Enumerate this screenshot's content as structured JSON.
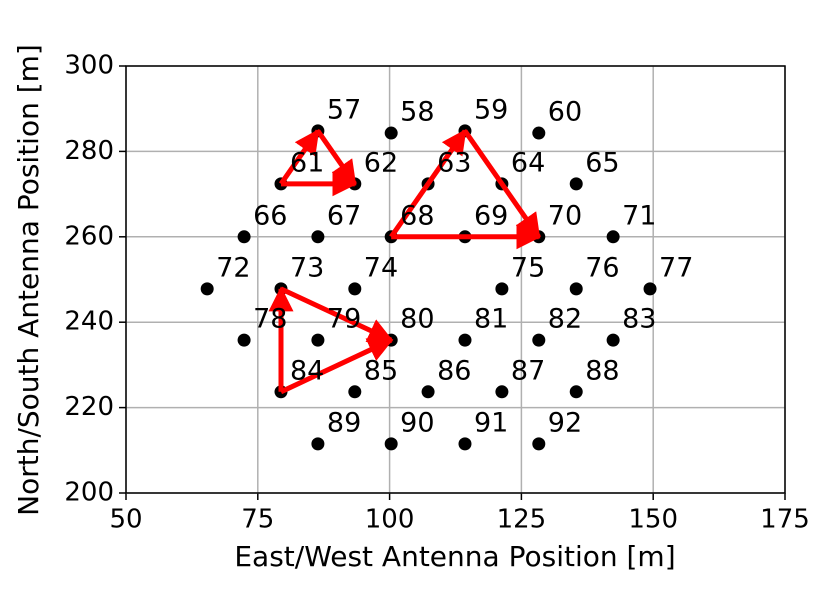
{
  "chart_data": {
    "type": "scatter",
    "xlabel": "East/West Antenna Position [m]",
    "ylabel": "North/South Antenna Position [m]",
    "xlim": [
      50,
      175
    ],
    "xticks": [
      50,
      75,
      100,
      125,
      150,
      175
    ],
    "ylim": [
      200,
      300
    ],
    "yticks": [
      200,
      220,
      240,
      260,
      280,
      300
    ],
    "grid": true,
    "color": "#000000",
    "point_labels": [
      "57",
      "58",
      "59",
      "60",
      "61",
      "62",
      "63",
      "64",
      "65",
      "66",
      "67",
      "68",
      "69",
      "70",
      "71",
      "72",
      "73",
      "74",
      "75",
      "76",
      "77",
      "78",
      "79",
      "80",
      "81",
      "82",
      "83",
      "84",
      "85",
      "86",
      "87",
      "88",
      "89",
      "90",
      "91",
      "92"
    ],
    "x": [
      86.4,
      100.3,
      114.3,
      128.3,
      79.4,
      93.4,
      107.3,
      121.3,
      135.4,
      72.4,
      86.4,
      100.3,
      114.3,
      128.3,
      142.4,
      65.4,
      79.4,
      93.4,
      121.3,
      135.4,
      149.4,
      72.4,
      86.4,
      100.3,
      114.3,
      128.3,
      142.4,
      79.4,
      93.4,
      107.3,
      121.3,
      135.4,
      86.4,
      100.3,
      114.3,
      128.3
    ],
    "values": [
      284.8,
      284.3,
      284.8,
      284.3,
      272.4,
      272.4,
      272.4,
      272.4,
      272.4,
      260,
      260,
      260,
      260,
      260,
      260,
      247.8,
      247.8,
      247.8,
      247.8,
      247.8,
      247.8,
      235.8,
      235.8,
      235.8,
      235.8,
      235.8,
      235.8,
      223.7,
      223.7,
      223.7,
      223.7,
      223.7,
      211.5,
      211.5,
      211.5,
      211.5
    ],
    "arrow_color": "#ff0000",
    "arrows": [
      {
        "x": [
          79.4,
          86.4
        ],
        "y": [
          272.4,
          284.8
        ]
      },
      {
        "x": [
          86.4,
          93.4
        ],
        "y": [
          284.8,
          272.4
        ]
      },
      {
        "x": [
          79.4,
          93.4
        ],
        "y": [
          272.4,
          272.4
        ]
      },
      {
        "x": [
          100.3,
          114.3
        ],
        "y": [
          260,
          284.8
        ]
      },
      {
        "x": [
          114.3,
          128.3
        ],
        "y": [
          284.8,
          260
        ]
      },
      {
        "x": [
          100.3,
          128.3
        ],
        "y": [
          260,
          260
        ]
      },
      {
        "x": [
          79.4,
          79.4
        ],
        "y": [
          223.7,
          247.8
        ]
      },
      {
        "x": [
          79.4,
          100.3
        ],
        "y": [
          247.8,
          235.8
        ]
      },
      {
        "x": [
          79.4,
          100.3
        ],
        "y": [
          223.7,
          235.8
        ]
      }
    ]
  }
}
